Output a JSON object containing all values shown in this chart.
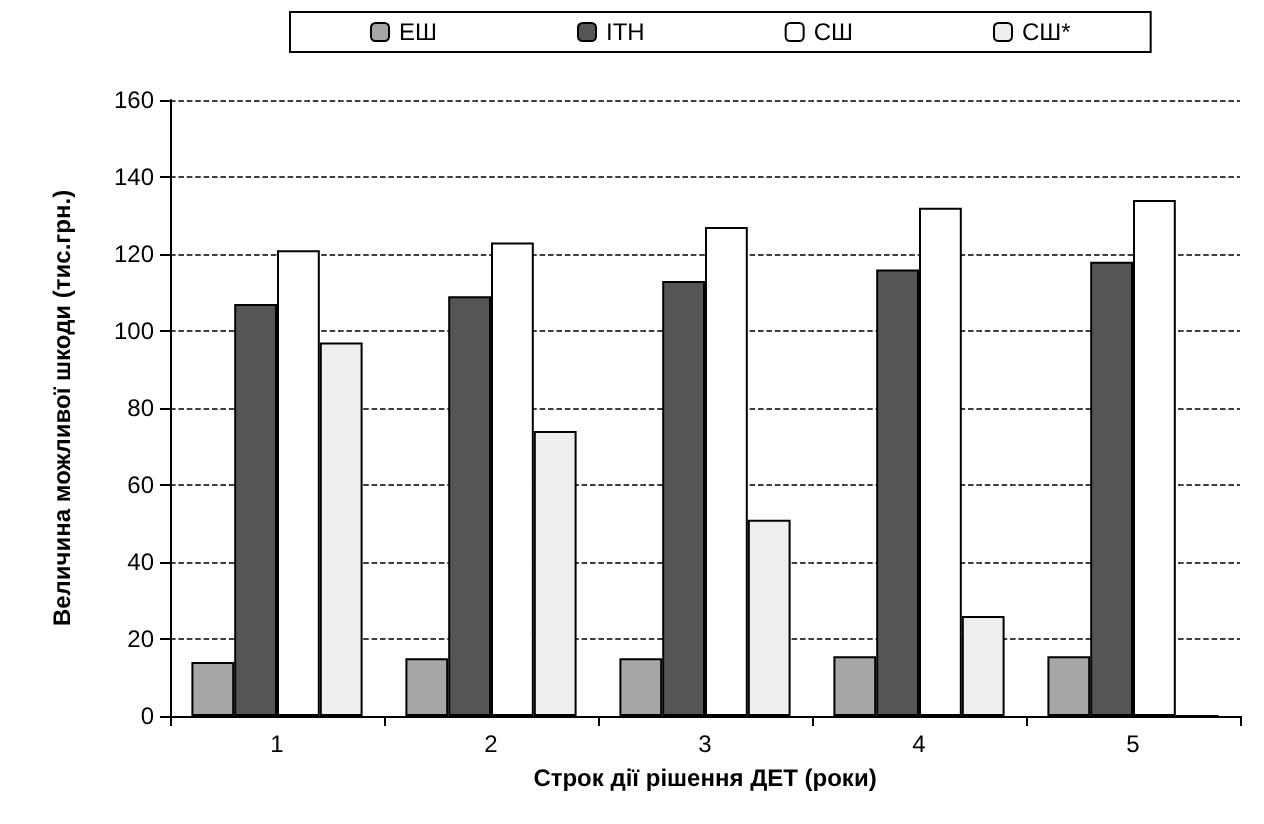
{
  "chart_data": {
    "type": "bar",
    "xlabel": "Строк дії рішення ДЕТ (роки)",
    "ylabel": "Величина можливої шкоди (тис.грн.)",
    "categories": [
      "1",
      "2",
      "3",
      "4",
      "5"
    ],
    "series": [
      {
        "name": "ЕШ",
        "color": "#a6a6a6",
        "values": [
          14,
          15,
          15,
          15.5,
          15.5
        ]
      },
      {
        "name": "ІТН",
        "color": "#555555",
        "values": [
          107,
          109,
          113,
          116,
          118
        ]
      },
      {
        "name": "СШ",
        "color": "#ffffff",
        "values": [
          121,
          123,
          127,
          132,
          134
        ]
      },
      {
        "name": "СШ*",
        "color": "#eeeeee",
        "values": [
          97,
          74,
          51,
          26,
          0
        ]
      }
    ],
    "ylim": [
      0,
      160
    ],
    "yticks": [
      0,
      20,
      40,
      60,
      80,
      100,
      120,
      140,
      160
    ],
    "grid": "y",
    "legend": "top"
  }
}
